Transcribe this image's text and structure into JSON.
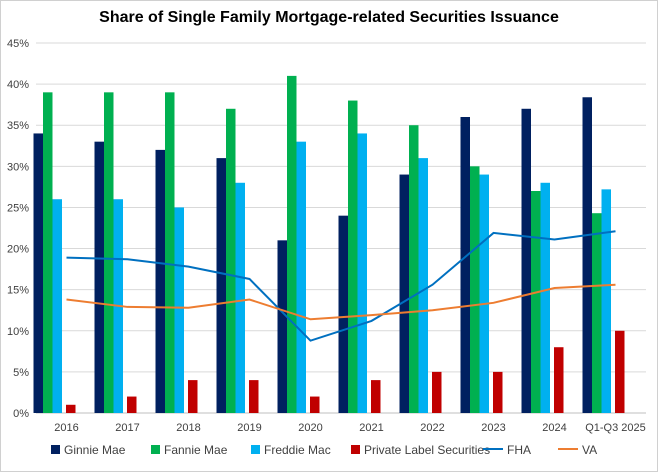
{
  "chart_data": {
    "type": "bar",
    "title": "Share of Single Family Mortgage-related Securities Issuance",
    "xlabel": "",
    "ylabel": "",
    "categories": [
      "2016",
      "2017",
      "2018",
      "2019",
      "2020",
      "2021",
      "2022",
      "2023",
      "2024",
      "Q1-Q3 2025"
    ],
    "ylim": [
      0,
      45
    ],
    "yticks": [
      "0%",
      "5%",
      "10%",
      "15%",
      "20%",
      "25%",
      "30%",
      "35%",
      "40%",
      "45%"
    ],
    "grid": true,
    "legend_position": "bottom",
    "series": [
      {
        "name": "Ginnie Mae",
        "kind": "bar",
        "color": "#002060",
        "values": [
          34,
          33,
          32,
          31,
          21,
          24,
          29,
          36,
          37,
          38.4
        ]
      },
      {
        "name": "Fannie Mae",
        "kind": "bar",
        "color": "#00b050",
        "values": [
          39,
          39,
          39,
          37,
          41,
          38,
          35,
          30,
          27,
          24.3
        ]
      },
      {
        "name": "Freddie Mac",
        "kind": "bar",
        "color": "#00b0f0",
        "values": [
          26,
          26,
          25,
          28,
          33,
          34,
          31,
          29,
          28,
          27.2
        ]
      },
      {
        "name": "Private Label Securities",
        "kind": "bar",
        "color": "#c00000",
        "values": [
          1,
          2,
          4,
          4,
          2,
          4,
          5,
          5,
          8,
          10
        ]
      },
      {
        "name": "FHA",
        "kind": "line",
        "color": "#0070c0",
        "values": [
          18.9,
          18.7,
          17.8,
          16.3,
          8.8,
          11.2,
          15.6,
          21.9,
          21.1,
          22.1
        ]
      },
      {
        "name": "VA",
        "kind": "line",
        "color": "#ed7d31",
        "values": [
          13.8,
          12.9,
          12.8,
          13.8,
          11.4,
          11.9,
          12.5,
          13.4,
          15.2,
          15.6
        ]
      }
    ]
  }
}
